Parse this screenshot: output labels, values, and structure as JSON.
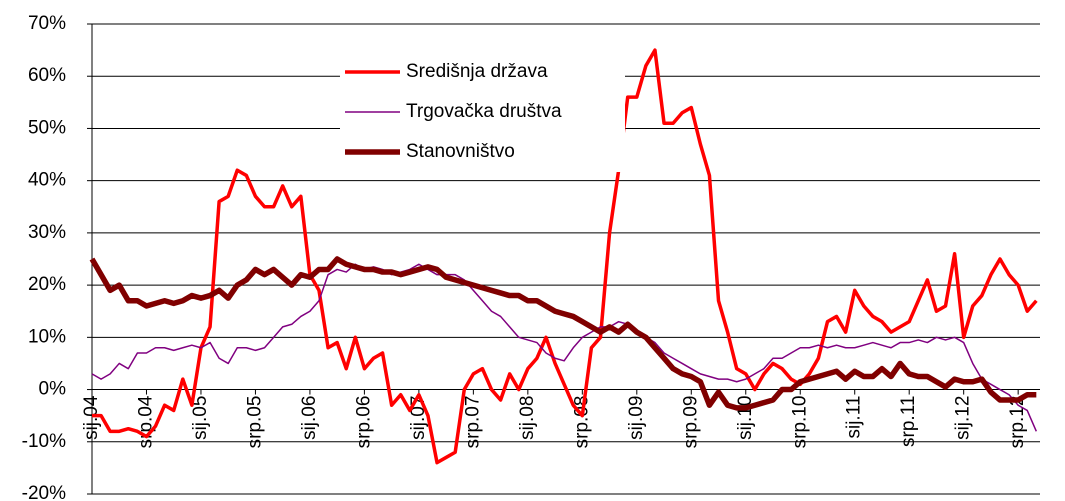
{
  "chart_data": {
    "type": "line",
    "categories": [
      "sij.04",
      null,
      null,
      null,
      null,
      null,
      "srp.04",
      null,
      null,
      null,
      null,
      null,
      "sij.05",
      null,
      null,
      null,
      null,
      null,
      "srp.05",
      null,
      null,
      null,
      null,
      null,
      "sij.06",
      null,
      null,
      null,
      null,
      null,
      "srp.06",
      null,
      null,
      null,
      null,
      null,
      "sij.07",
      null,
      null,
      null,
      null,
      null,
      "srp.07",
      null,
      null,
      null,
      null,
      null,
      "sij.08",
      null,
      null,
      null,
      null,
      null,
      "srp.08",
      null,
      null,
      null,
      null,
      null,
      "sij.09",
      null,
      null,
      null,
      null,
      null,
      "srp.09",
      null,
      null,
      null,
      null,
      null,
      "sij.10",
      null,
      null,
      null,
      null,
      null,
      "srp.10",
      null,
      null,
      null,
      null,
      null,
      "sij.11",
      null,
      null,
      null,
      null,
      null,
      "srp.11",
      null,
      null,
      null,
      null,
      null,
      "sij.12",
      null,
      null,
      null,
      null,
      null,
      "srp.12",
      null,
      null
    ],
    "series": [
      {
        "name": "Središnja država",
        "color": "#ff0000",
        "line_width": 3.5,
        "values": [
          -5,
          -5,
          -8,
          -8,
          -7.5,
          -8,
          -9,
          -7,
          -3,
          -4,
          2,
          -3,
          8,
          12,
          36,
          37,
          42,
          41,
          37,
          35,
          35,
          39,
          35,
          37,
          22,
          19,
          8,
          9,
          4,
          10,
          4,
          6,
          7,
          -3,
          -1,
          -4,
          -1,
          -5,
          -14,
          -13,
          -12,
          0,
          3,
          4,
          0,
          -2,
          3,
          0,
          4,
          6,
          10,
          5,
          1,
          -3,
          -5,
          8,
          10,
          30,
          42,
          56,
          56,
          62,
          65,
          51,
          51,
          53,
          54,
          47,
          41,
          17,
          11,
          4,
          3,
          0,
          3,
          5,
          4,
          2,
          1,
          3,
          6,
          13,
          14,
          11,
          19,
          16,
          14,
          13,
          11,
          12,
          13,
          17,
          21,
          15,
          16,
          26,
          10,
          16,
          18,
          22,
          25,
          22,
          20,
          15,
          17
        ]
      },
      {
        "name": "Trgovačka društva",
        "color": "#800080",
        "line_width": 1.5,
        "values": [
          3,
          2,
          3,
          5,
          4,
          7,
          7,
          8,
          8,
          7.5,
          8,
          8.5,
          8,
          9,
          6,
          5,
          8,
          8,
          7.5,
          8,
          10,
          12,
          12.5,
          14,
          15,
          17,
          22,
          23,
          22.5,
          24,
          23,
          23.5,
          23,
          22,
          22.5,
          23,
          24,
          23,
          22,
          22,
          22,
          21,
          19,
          17,
          15,
          14,
          12,
          10,
          9.5,
          9,
          7,
          6,
          5.5,
          8,
          10,
          11,
          12,
          12,
          13,
          12.5,
          11,
          10,
          9,
          7,
          6,
          5,
          4,
          3,
          2.5,
          2,
          2,
          1.5,
          2,
          3,
          4,
          6,
          6,
          7,
          8,
          8,
          8.5,
          8,
          8.5,
          8,
          8,
          8.5,
          9,
          8.5,
          8,
          9,
          9,
          9.5,
          9,
          10,
          9.5,
          10,
          9,
          5,
          2,
          1,
          0,
          -1,
          -3,
          -4,
          -8
        ]
      },
      {
        "name": "Stanovništvo",
        "color": "#800000",
        "line_width": 5.5,
        "values": [
          25,
          22,
          19,
          20,
          17,
          17,
          16,
          16.5,
          17,
          16.5,
          17,
          18,
          17.5,
          18,
          19,
          17.5,
          20,
          21,
          23,
          22,
          23,
          21.5,
          20,
          22,
          21.5,
          23,
          23,
          25,
          24,
          23.5,
          23,
          23,
          22.5,
          22.5,
          22,
          22.5,
          23,
          23.5,
          23,
          21.5,
          21,
          20.5,
          20,
          19.5,
          19,
          18.5,
          18,
          18,
          17,
          17,
          16,
          15,
          14.5,
          14,
          13,
          12,
          11,
          12,
          11,
          12.5,
          11,
          10,
          8,
          6,
          4,
          3,
          2.5,
          1.5,
          -3,
          -0.5,
          -3,
          -3.5,
          -3.5,
          -3,
          -2.5,
          -2,
          0,
          0,
          1.5,
          2,
          2.5,
          3,
          3.5,
          2,
          3.5,
          2.5,
          2.5,
          4,
          2.5,
          5,
          3,
          2.5,
          2.5,
          1.5,
          0.5,
          2,
          1.5,
          1.5,
          2,
          -0.5,
          -2,
          -2,
          -2,
          -1,
          -1
        ]
      }
    ],
    "ylim": [
      -20,
      70
    ],
    "yticks": [
      {
        "value": -20,
        "label": "-20%"
      },
      {
        "value": -10,
        "label": "-10%"
      },
      {
        "value": 0,
        "label": "0%"
      },
      {
        "value": 10,
        "label": "10%"
      },
      {
        "value": 20,
        "label": "20%"
      },
      {
        "value": 30,
        "label": "30%"
      },
      {
        "value": 40,
        "label": "40%"
      },
      {
        "value": 50,
        "label": "50%"
      },
      {
        "value": 60,
        "label": "60%"
      },
      {
        "value": 70,
        "label": "70%"
      }
    ],
    "grid": true,
    "legend": "upper center"
  }
}
